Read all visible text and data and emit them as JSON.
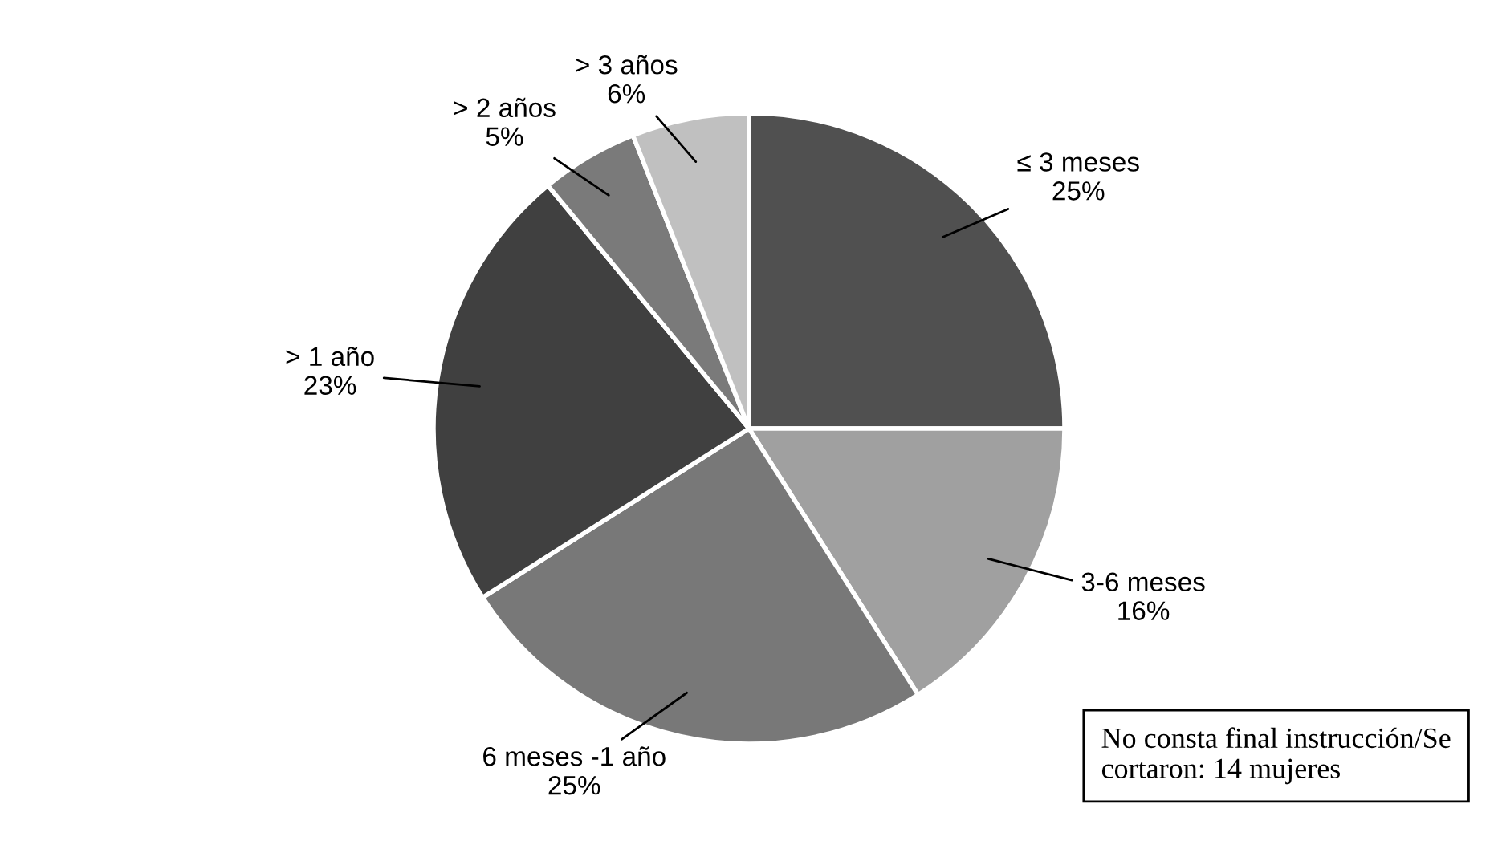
{
  "chart_data": {
    "type": "pie",
    "categories": [
      "≤ 3 meses",
      "3-6 meses",
      "6 meses -1 año",
      "> 1 año",
      "> 2 años",
      "> 3 años"
    ],
    "values": [
      25,
      16,
      25,
      23,
      5,
      6
    ],
    "value_labels": [
      "25%",
      "16%",
      "25%",
      "23%",
      "5%",
      "6%"
    ],
    "colors": [
      "#505050",
      "#a0a0a0",
      "#787878",
      "#404040",
      "#7a7a7a",
      "#c0c0c0"
    ],
    "annotations": [
      "No consta final instrucción/Se cortaron: 14 mujeres"
    ]
  }
}
